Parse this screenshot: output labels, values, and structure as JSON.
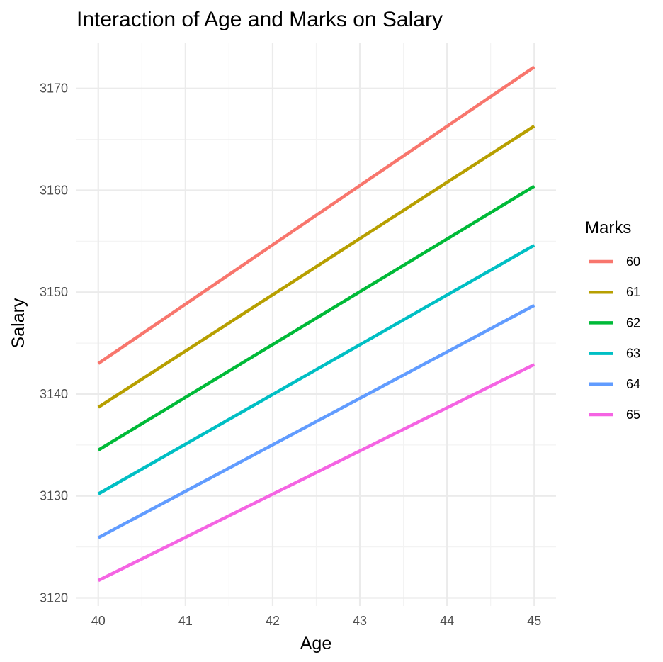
{
  "chart_data": {
    "type": "line",
    "title": "Interaction of Age and Marks on Salary",
    "xlabel": "Age",
    "ylabel": "Salary",
    "x": [
      40,
      45
    ],
    "xlim": [
      39.75,
      45.25
    ],
    "ylim": [
      3119.2,
      3174.5
    ],
    "x_ticks": [
      40,
      41,
      42,
      43,
      44,
      45
    ],
    "y_ticks": [
      3120,
      3130,
      3140,
      3150,
      3160,
      3170
    ],
    "grid": true,
    "legend": {
      "title": "Marks",
      "placement": "right"
    },
    "series": [
      {
        "name": "60",
        "color": "#F8766D",
        "values": [
          3143.0,
          3172.1
        ]
      },
      {
        "name": "61",
        "color": "#B79F00",
        "values": [
          3138.7,
          3166.3
        ]
      },
      {
        "name": "62",
        "color": "#00BA38",
        "values": [
          3134.5,
          3160.4
        ]
      },
      {
        "name": "63",
        "color": "#00BFC4",
        "values": [
          3130.2,
          3154.6
        ]
      },
      {
        "name": "64",
        "color": "#619CFF",
        "values": [
          3125.9,
          3148.7
        ]
      },
      {
        "name": "65",
        "color": "#F564E3",
        "values": [
          3121.7,
          3142.9
        ]
      }
    ]
  }
}
